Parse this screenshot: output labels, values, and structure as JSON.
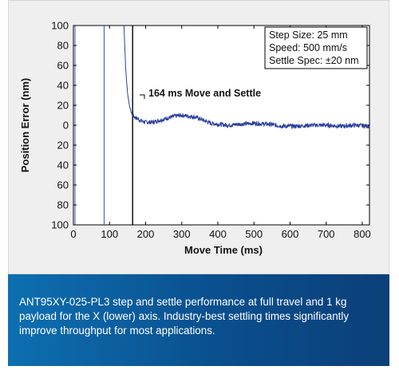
{
  "chart_data": {
    "type": "line",
    "title": "",
    "xlabel": "Move Time (ms)",
    "ylabel": "Position Error (nm)",
    "xlim": [
      0,
      820
    ],
    "ylim": [
      -100,
      100
    ],
    "x_ticks": [
      "0",
      "100",
      "200",
      "300",
      "400",
      "500",
      "600",
      "700",
      "800"
    ],
    "y_ticks": [
      "100",
      "80",
      "60",
      "40",
      "20",
      "0",
      "20",
      "40",
      "60",
      "80",
      "100"
    ],
    "grid": false,
    "vertical_markers_ms": [
      0,
      85,
      164
    ],
    "annotation": "164 ms Move and Settle",
    "legend_box": [
      "Step Size: 25 mm",
      "Speed: 500 mm/s",
      "Settle Spec: ±20 nm"
    ],
    "series": [
      {
        "color": "#2a3f9e",
        "x": [
          140,
          145,
          150,
          155,
          160,
          164,
          170,
          180,
          190,
          200,
          220,
          240,
          260,
          280,
          300,
          320,
          340,
          360,
          380,
          400,
          430,
          460,
          500,
          540,
          580,
          620,
          660,
          700,
          740,
          780,
          820
        ],
        "y": [
          100,
          55,
          32,
          20,
          13,
          10,
          8,
          6,
          4,
          3,
          3,
          5,
          7,
          9,
          10,
          9,
          8,
          5,
          2,
          1,
          0,
          1,
          2,
          1,
          -1,
          -1,
          0,
          0,
          -1,
          0,
          -1
        ]
      }
    ]
  },
  "caption": "ANT95XY-025-PL3 step and settle performance at full travel and 1 kg payload for the X (lower) axis. Industry-best settling times significantly improve throughput for most applications.",
  "colors": {
    "trace": "#2a3f9e",
    "marker": "#3850b0",
    "settle_marker": "#000000",
    "caption_bg_start": "#0d6fb0",
    "caption_bg_end": "#0b3f78"
  }
}
